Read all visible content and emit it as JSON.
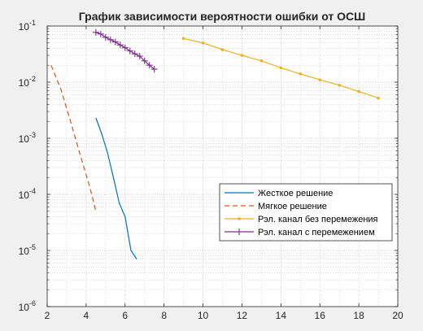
{
  "chart_data": {
    "type": "line",
    "title": "График зависимости вероятности ошибки от ОСШ",
    "xlabel": "",
    "ylabel": "",
    "xlim": [
      2,
      20
    ],
    "ylim": [
      1e-06,
      0.1
    ],
    "yscale": "log",
    "grid": true,
    "minor_grid": true,
    "legend_position": "lower-right",
    "x_ticks": [
      "2",
      "4",
      "6",
      "8",
      "10",
      "12",
      "14",
      "16",
      "18",
      "20"
    ],
    "x_tick_values": [
      2,
      4,
      6,
      8,
      10,
      12,
      14,
      16,
      18,
      20
    ],
    "y_ticks": [
      {
        "value": 1e-06,
        "base": "10",
        "exp": "-6"
      },
      {
        "value": 1e-05,
        "base": "10",
        "exp": "-5"
      },
      {
        "value": 0.0001,
        "base": "10",
        "exp": "-4"
      },
      {
        "value": 0.001,
        "base": "10",
        "exp": "-3"
      },
      {
        "value": 0.01,
        "base": "10",
        "exp": "-2"
      },
      {
        "value": 0.1,
        "base": "10",
        "exp": "-1"
      }
    ],
    "series": [
      {
        "name": "Жесткое решение",
        "color": "#0072BD",
        "style": "solid",
        "marker": "none",
        "x": [
          4.5,
          4.8,
          5.1,
          5.4,
          5.7,
          6.0,
          6.3,
          6.6
        ],
        "y": [
          0.0023,
          0.0012,
          0.00055,
          0.0002,
          7e-05,
          4e-05,
          1e-05,
          7e-06
        ]
      },
      {
        "name": "Мягкое решение",
        "color": "#D95319",
        "style": "dashed",
        "marker": "none",
        "x": [
          2.2,
          2.7,
          3.2,
          3.7,
          4.2,
          4.5
        ],
        "y": [
          0.02,
          0.0075,
          0.002,
          0.0005,
          0.00013,
          5e-05
        ]
      },
      {
        "name": "Рэл. канал без перемежения",
        "color": "#EDB120",
        "style": "solid",
        "marker": "dot",
        "x": [
          9,
          10,
          11,
          12,
          13,
          14,
          15,
          16,
          17,
          18,
          19
        ],
        "y": [
          0.06,
          0.05,
          0.038,
          0.03,
          0.024,
          0.018,
          0.014,
          0.011,
          0.0088,
          0.0068,
          0.0052
        ]
      },
      {
        "name": "Рэл. канал с перемежением",
        "color": "#7E2F8E",
        "style": "solid",
        "marker": "plus",
        "x": [
          4.5,
          4.75,
          5.0,
          5.25,
          5.5,
          5.75,
          6.0,
          6.25,
          6.5,
          6.75,
          7.0,
          7.25,
          7.5
        ],
        "y": [
          0.077,
          0.072,
          0.063,
          0.057,
          0.052,
          0.046,
          0.041,
          0.036,
          0.032,
          0.029,
          0.024,
          0.02,
          0.017
        ]
      }
    ]
  }
}
